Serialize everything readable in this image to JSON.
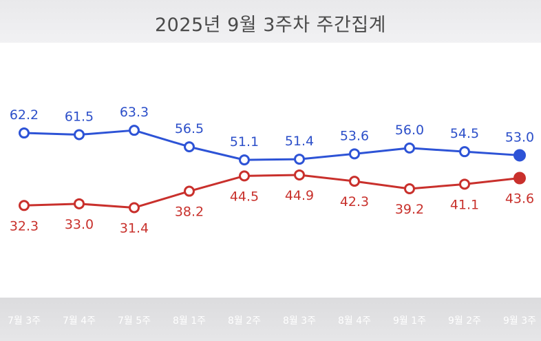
{
  "title": "2025년 9월 3주차 주간집계",
  "colors": {
    "blue": "#2d53d6",
    "red": "#c9302c",
    "header_bg": "#ebebed",
    "axis_bg": "#dedee0"
  },
  "chart_data": {
    "type": "line",
    "title": "2025년 9월 3주차 주간집계",
    "categories": [
      "7월 3주",
      "7월 4주",
      "7월 5주",
      "8월 1주",
      "8월 2주",
      "8월 3주",
      "8월 4주",
      "9월 1주",
      "9월 2주",
      "9월 3주"
    ],
    "series": [
      {
        "color": "#2d53d6",
        "values": [
          62.2,
          61.5,
          63.3,
          56.5,
          51.1,
          51.4,
          53.6,
          56.0,
          54.5,
          53.0
        ]
      },
      {
        "color": "#c9302c",
        "values": [
          32.3,
          33.0,
          31.4,
          38.2,
          44.5,
          44.9,
          42.3,
          39.2,
          41.1,
          43.6
        ]
      }
    ],
    "value_labels": [
      [
        "62.2",
        "61.5",
        "63.3",
        "56.5",
        "51.1",
        "51.4",
        "53.6",
        "56.0",
        "54.5",
        "53.0"
      ],
      [
        "32.3",
        "33.0",
        "31.4",
        "38.2",
        "44.5",
        "44.9",
        "42.3",
        "39.2",
        "41.1",
        "43.6"
      ]
    ],
    "xlabel": "",
    "ylabel": "",
    "grid": false,
    "legend": "none"
  }
}
